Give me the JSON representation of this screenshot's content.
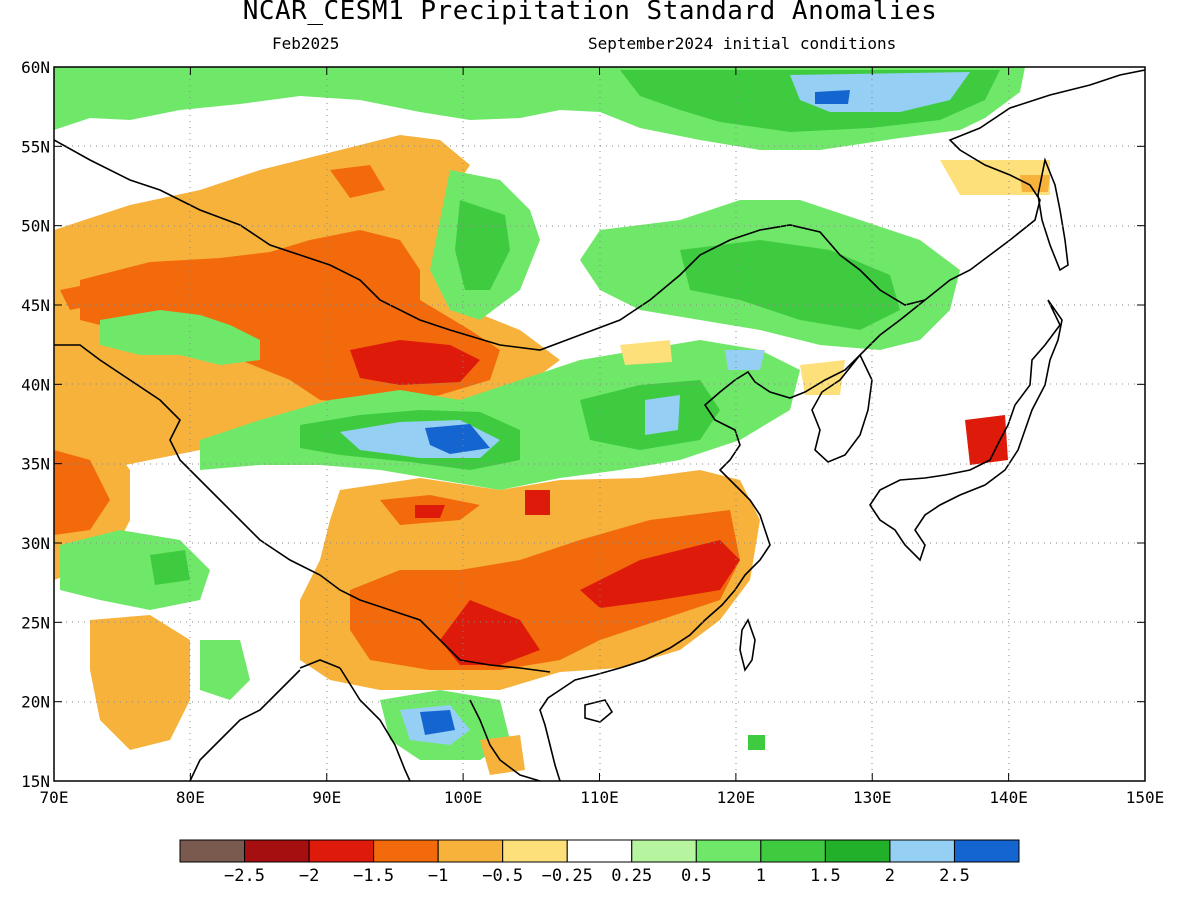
{
  "header": {
    "title": "NCAR_CESM1 Precipitation Standard Anomalies",
    "valid_month": "Feb2025",
    "initial_conditions": "September2024 initial conditions"
  },
  "map": {
    "lon_range": [
      70,
      150
    ],
    "lat_range": [
      15,
      60
    ],
    "lon_ticks": [
      "70E",
      "80E",
      "90E",
      "100E",
      "110E",
      "120E",
      "130E",
      "140E",
      "150E"
    ],
    "lat_ticks": [
      "15N",
      "20N",
      "25N",
      "30N",
      "35N",
      "40N",
      "45N",
      "50N",
      "55N",
      "60N"
    ],
    "gridlines": true
  },
  "legend": {
    "labels": [
      "−2.5",
      "−2",
      "−1.5",
      "−1",
      "−0.5",
      "−0.25",
      "0.25",
      "0.5",
      "1",
      "1.5",
      "2",
      "2.5"
    ],
    "colors": [
      "#7a5a4e",
      "#a50f0f",
      "#de1a0a",
      "#f26a0c",
      "#f7b23c",
      "#fde07a",
      "#ffffff",
      "#b7f4a0",
      "#6fe86a",
      "#3fcb40",
      "#22b02a",
      "#96cff4",
      "#1565d0"
    ]
  }
}
